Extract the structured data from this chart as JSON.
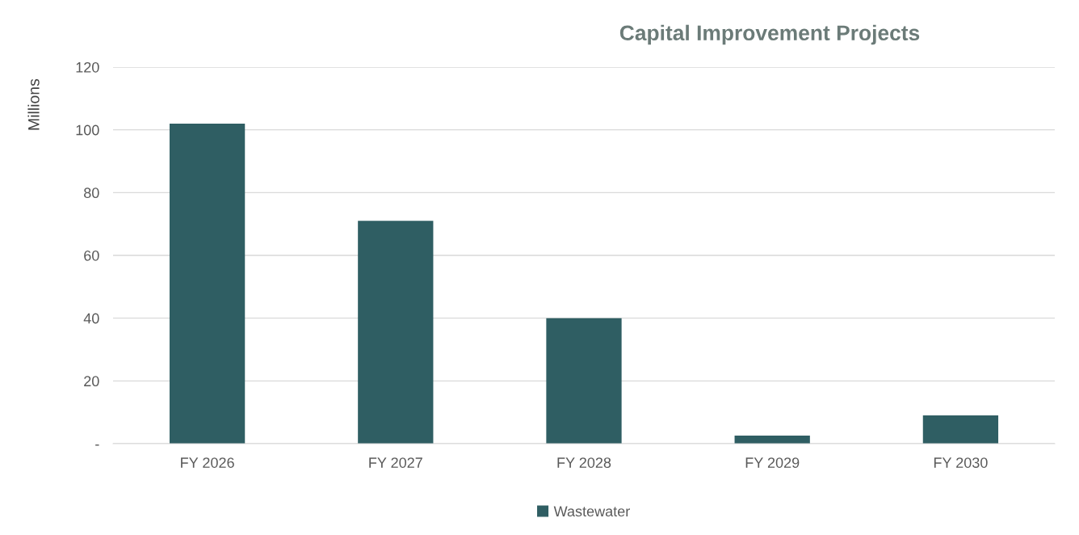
{
  "chart_data": {
    "type": "bar",
    "title": "Capital Improvement Projects",
    "ylabel": "Millions",
    "categories": [
      "FY 2026",
      "FY 2027",
      "FY 2028",
      "FY 2029",
      "FY 2030"
    ],
    "series": [
      {
        "name": "Wastewater",
        "color": "#2f5e63",
        "values": [
          102,
          71,
          40,
          2.6,
          9
        ]
      }
    ],
    "ylim": [
      0,
      120
    ],
    "yticks": [
      {
        "value": 0,
        "label": "-"
      },
      20,
      40,
      60,
      80,
      100,
      120
    ],
    "grid": "y",
    "legend": "bottom"
  }
}
